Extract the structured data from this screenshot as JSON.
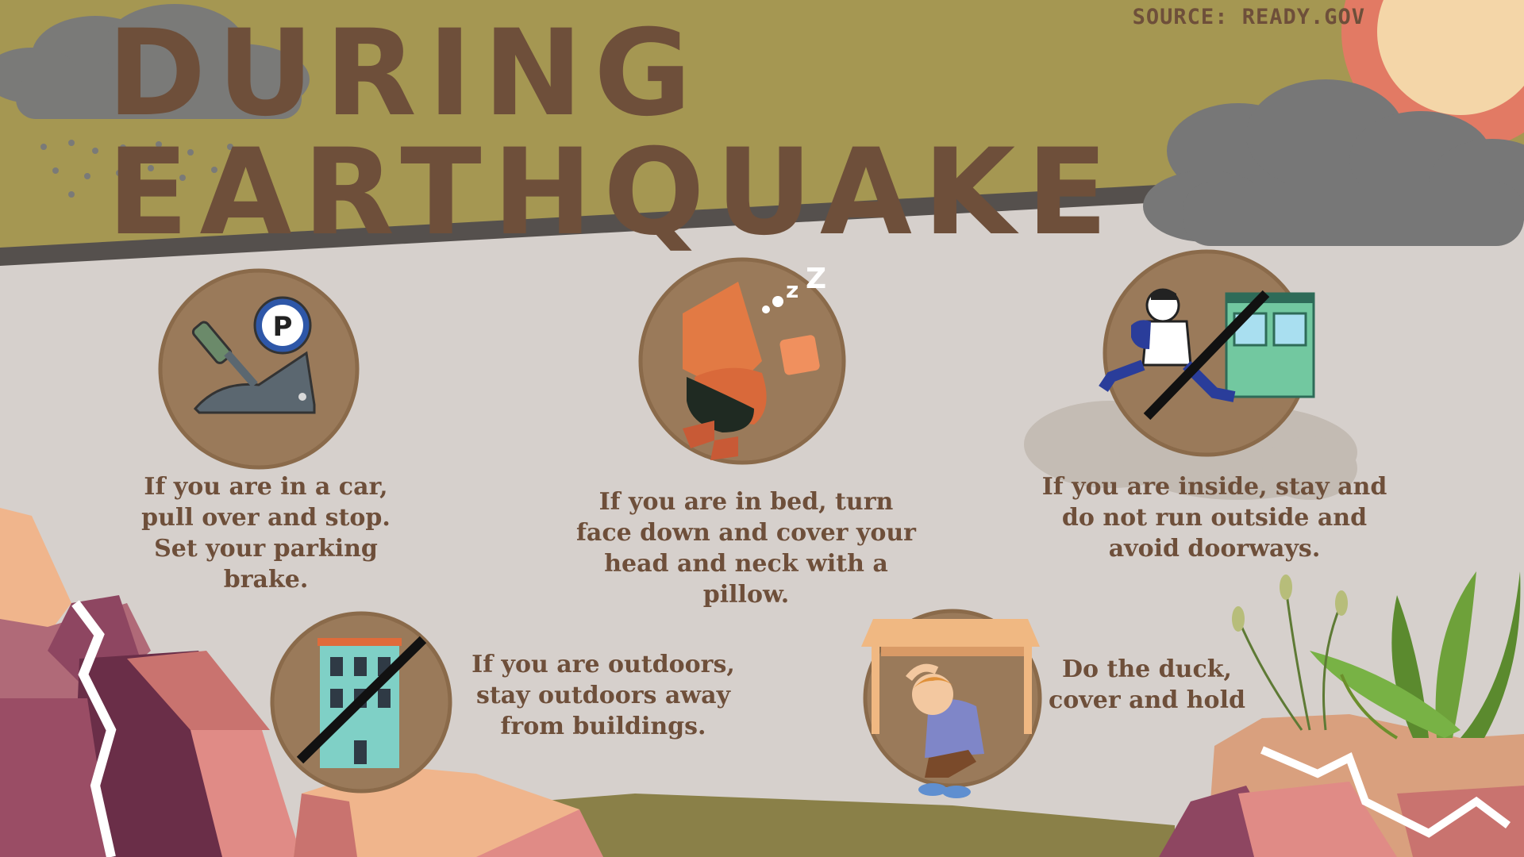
{
  "header": {
    "title": "DURING EARTHQUAKE",
    "source": "SOURCE: READY.GOV"
  },
  "tips": [
    {
      "icon": "parking-brake-icon",
      "text": "If you are in a car, pull over and stop. Set your parking brake."
    },
    {
      "icon": "sleeping-person-pillow-icon",
      "text": "If you are in bed, turn face down and cover your head and neck with a pillow."
    },
    {
      "icon": "no-running-outside-icon",
      "text": "If you are inside, stay and do not run outside and avoid doorways."
    },
    {
      "icon": "no-building-icon",
      "text": "If you are outdoors, stay outdoors away from buildings."
    },
    {
      "icon": "duck-under-table-icon",
      "text": "Do the duck, cover and hold"
    }
  ],
  "colors": {
    "background": "#d6d0cc",
    "header_band": "#a59752",
    "title_text": "#6e4f3a",
    "icon_circle": "#9a7a5a",
    "cloud": "#777777",
    "sun": "#e27a64",
    "rock": "#c9736f"
  }
}
